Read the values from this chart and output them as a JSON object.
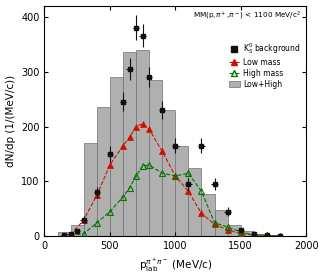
{
  "xlabel": "p$_{\\mathrm{lab}}^{\\pi^+\\pi^-}$ (MeV/c)",
  "ylabel": "dN/dp (1/(MeV/c))",
  "xlim": [
    0,
    2000
  ],
  "ylim": [
    0,
    420
  ],
  "xticks": [
    0,
    500,
    1000,
    1500,
    2000
  ],
  "yticks": [
    0,
    100,
    200,
    300,
    400
  ],
  "hist_edges": [
    100,
    200,
    300,
    400,
    500,
    600,
    700,
    800,
    900,
    1000,
    1100,
    1200,
    1300,
    1400,
    1500,
    1600,
    1700,
    1800
  ],
  "hist_values": [
    8,
    20,
    170,
    235,
    290,
    335,
    340,
    285,
    230,
    165,
    125,
    78,
    48,
    20,
    10,
    4,
    2
  ],
  "hist_color": "#b0b0b0",
  "hist_edgecolor": "#707070",
  "black_x": [
    150,
    200,
    250,
    300,
    400,
    500,
    600,
    650,
    700,
    750,
    800,
    900,
    1000,
    1100,
    1200,
    1300,
    1400,
    1500,
    1600,
    1700,
    1800
  ],
  "black_y": [
    2,
    5,
    10,
    30,
    80,
    150,
    245,
    305,
    380,
    365,
    290,
    230,
    165,
    95,
    165,
    95,
    45,
    12,
    5,
    3,
    1
  ],
  "black_yerr": [
    1,
    2,
    4,
    7,
    10,
    14,
    17,
    20,
    22,
    21,
    18,
    17,
    14,
    11,
    14,
    11,
    8,
    4,
    3,
    2,
    1
  ],
  "black_xerr": 25,
  "red_x": [
    200,
    300,
    400,
    500,
    600,
    650,
    700,
    750,
    800,
    900,
    1000,
    1100,
    1200,
    1300,
    1400,
    1500,
    1600,
    1700,
    1800
  ],
  "red_y": [
    3,
    30,
    75,
    130,
    165,
    180,
    200,
    205,
    195,
    155,
    110,
    82,
    42,
    22,
    12,
    5,
    3,
    2,
    1
  ],
  "green_x": [
    200,
    300,
    400,
    500,
    600,
    650,
    700,
    750,
    800,
    900,
    1000,
    1100,
    1200,
    1300,
    1400,
    1500,
    1600,
    1700,
    1800
  ],
  "green_y": [
    2,
    5,
    25,
    45,
    72,
    88,
    110,
    128,
    130,
    115,
    110,
    115,
    82,
    25,
    17,
    8,
    3,
    2,
    1
  ],
  "black_color": "#111111",
  "red_color": "#cc1100",
  "green_color": "#007700",
  "background": "#ffffff",
  "annotation": "MM(p,π⁺,π⁻) < 1100 MeV/c²"
}
